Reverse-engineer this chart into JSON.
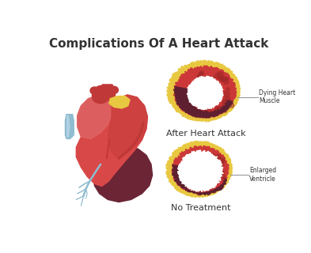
{
  "title": "Complications Of A Heart Attack",
  "title_fontsize": 11,
  "title_fontweight": "bold",
  "bg_color": "#ffffff",
  "label_after": "After Heart Attack",
  "label_no_treatment": "No Treatment",
  "label_dying": "Dying Heart\nMuscle",
  "label_enlarged": "Enlarged\nVentricle",
  "heart_red_base": "#d94848",
  "heart_red_light": "#e06868",
  "heart_red_darker": "#c03838",
  "heart_red_inner": "#b83030",
  "heart_dark": "#6b2535",
  "heart_yellow": "#e8c840",
  "heart_blue": "#90bcd0",
  "heart_pink_highlight": "#e87878",
  "cross_red": "#cc3838",
  "cross_red_light": "#d85050",
  "cross_dark": "#5e2030",
  "cross_yellow": "#e8c840",
  "cross_white": "#ffffff",
  "cross_texture_dark": "#a02828",
  "text_color": "#333333",
  "line_color": "#999999"
}
